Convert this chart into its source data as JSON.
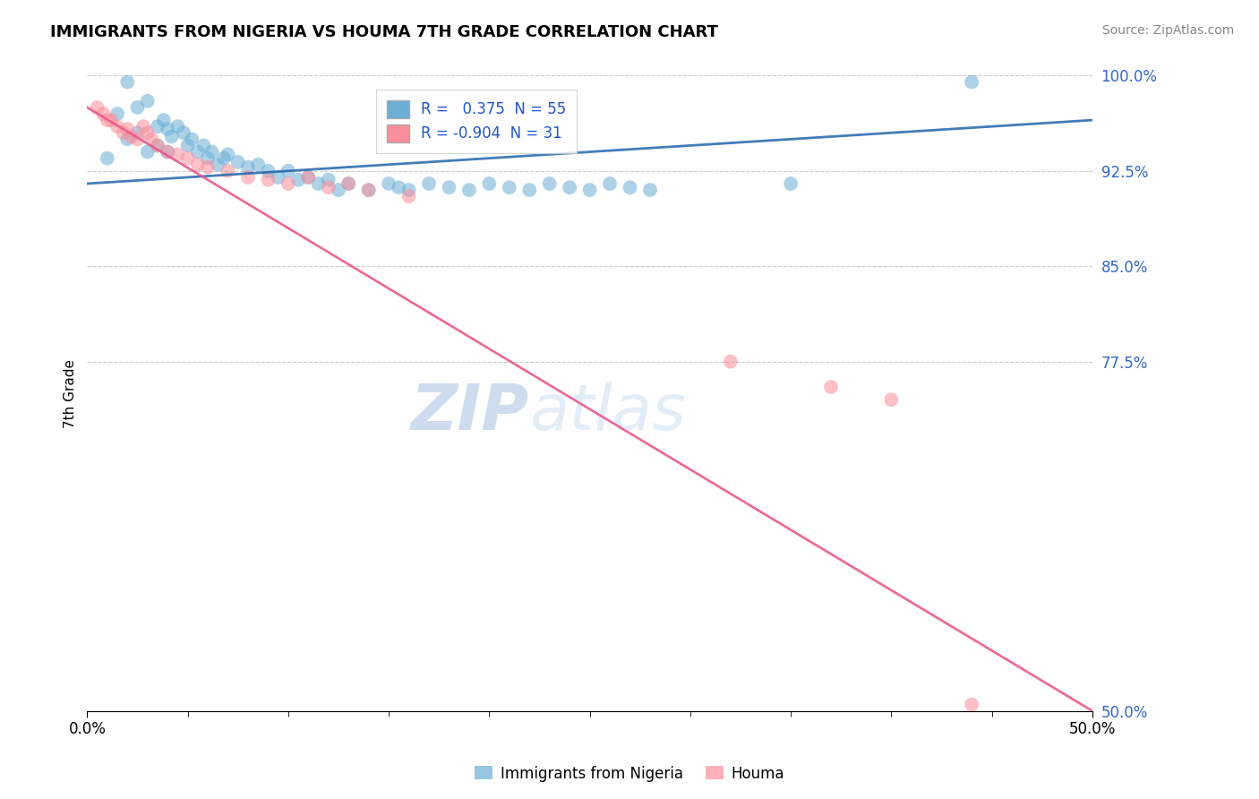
{
  "title": "IMMIGRANTS FROM NIGERIA VS HOUMA 7TH GRADE CORRELATION CHART",
  "source": "Source: ZipAtlas.com",
  "ylabel": "7th Grade",
  "x_label_bottom_left": "0.0%",
  "x_label_bottom_right": "50.0%",
  "y_ticks": [
    50.0,
    77.5,
    85.0,
    92.5,
    100.0
  ],
  "y_tick_labels": [
    "50.0%",
    "77.5%",
    "85.0%",
    "92.5%",
    "100.0%"
  ],
  "xmin": 0.0,
  "xmax": 50.0,
  "ymin": 50.0,
  "ymax": 100.0,
  "blue_R": 0.375,
  "blue_N": 55,
  "pink_R": -0.904,
  "pink_N": 31,
  "legend_label_blue": "Immigrants from Nigeria",
  "legend_label_pink": "Houma",
  "blue_color": "#6baed6",
  "pink_color": "#fc8d9a",
  "blue_line_color": "#2166ac",
  "pink_line_color": "#e8548a",
  "watermark_zip": "ZIP",
  "watermark_atlas": "atlas",
  "blue_scatter_x": [
    1.0,
    1.5,
    2.0,
    2.0,
    2.5,
    2.5,
    3.0,
    3.0,
    3.5,
    3.5,
    3.8,
    4.0,
    4.0,
    4.2,
    4.5,
    4.8,
    5.0,
    5.2,
    5.5,
    5.8,
    6.0,
    6.2,
    6.5,
    6.8,
    7.0,
    7.5,
    8.0,
    8.5,
    9.0,
    9.5,
    10.0,
    10.5,
    11.0,
    11.5,
    12.0,
    12.5,
    13.0,
    14.0,
    15.0,
    15.5,
    16.0,
    17.0,
    18.0,
    19.0,
    20.0,
    21.0,
    22.0,
    23.0,
    24.0,
    25.0,
    26.0,
    27.0,
    28.0,
    35.0,
    44.0
  ],
  "blue_scatter_y": [
    93.5,
    97.0,
    95.0,
    99.5,
    97.5,
    95.5,
    98.0,
    94.0,
    96.0,
    94.5,
    96.5,
    94.0,
    95.8,
    95.2,
    96.0,
    95.5,
    94.5,
    95.0,
    94.0,
    94.5,
    93.5,
    94.0,
    93.0,
    93.5,
    93.8,
    93.2,
    92.8,
    93.0,
    92.5,
    92.0,
    92.5,
    91.8,
    92.0,
    91.5,
    91.8,
    91.0,
    91.5,
    91.0,
    91.5,
    91.2,
    91.0,
    91.5,
    91.2,
    91.0,
    91.5,
    91.2,
    91.0,
    91.5,
    91.2,
    91.0,
    91.5,
    91.2,
    91.0,
    91.5,
    99.5
  ],
  "pink_scatter_x": [
    0.5,
    0.8,
    1.0,
    1.2,
    1.5,
    1.8,
    2.0,
    2.2,
    2.5,
    2.8,
    3.0,
    3.2,
    3.5,
    4.0,
    4.5,
    5.0,
    5.5,
    6.0,
    7.0,
    8.0,
    9.0,
    10.0,
    11.0,
    12.0,
    13.0,
    14.0,
    16.0,
    32.0,
    37.0,
    40.0,
    44.0
  ],
  "pink_scatter_y": [
    97.5,
    97.0,
    96.5,
    96.5,
    96.0,
    95.5,
    95.8,
    95.2,
    95.0,
    96.0,
    95.5,
    95.0,
    94.5,
    94.0,
    93.8,
    93.5,
    93.0,
    92.8,
    92.5,
    92.0,
    91.8,
    91.5,
    92.0,
    91.2,
    91.5,
    91.0,
    90.5,
    77.5,
    75.5,
    74.5,
    50.5
  ],
  "blue_line_x": [
    0.0,
    50.0
  ],
  "blue_line_y": [
    91.5,
    96.5
  ],
  "pink_line_x": [
    0.0,
    50.0
  ],
  "pink_line_y": [
    97.5,
    50.0
  ]
}
